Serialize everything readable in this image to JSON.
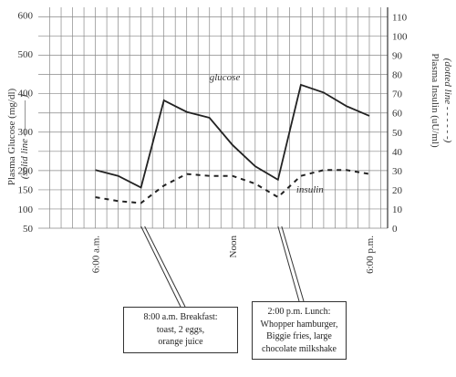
{
  "chart_data": {
    "type": "line",
    "title": "",
    "y_left_label": "Plasma Glucose (mg/dl)",
    "y_left_sublabel": "(solid line ———— )",
    "y_right_label": "Plasma Insulin (uU/ml)",
    "y_right_sublabel": "(dotted line - - - - - -)",
    "y_left_ticks": [
      600,
      500,
      400,
      300,
      200,
      150,
      100,
      50
    ],
    "y_left_tick_labels": [
      "600",
      "500",
      "400",
      "300",
      "200",
      "150",
      "100",
      "50"
    ],
    "y_right_ticks": [
      110,
      100,
      90,
      80,
      70,
      60,
      50,
      40,
      30,
      20,
      10,
      0
    ],
    "y_left_range": [
      50,
      620
    ],
    "y_right_range": [
      0,
      115
    ],
    "x_tick_labels": [
      "6:00 a.m.",
      "Noon",
      "6:00 p.m."
    ],
    "x_ticks_hours": [
      6,
      12,
      18
    ],
    "x_range_hours": [
      3.5,
      18.8
    ],
    "grid": true,
    "series": [
      {
        "name": "glucose",
        "style": "solid",
        "axis": "left",
        "x_hours": [
          6.0,
          7.0,
          8.0,
          9.0,
          9.5,
          10.0,
          11.0,
          12.0,
          13.0,
          14.0,
          15.0,
          16.0,
          17.0,
          18.0
        ],
        "y": [
          200,
          185,
          155,
          380,
          365,
          350,
          335,
          265,
          210,
          175,
          420,
          400,
          365,
          340
        ]
      },
      {
        "name": "insulin",
        "style": "dotted",
        "axis": "left",
        "x_hours": [
          6.0,
          7.0,
          8.0,
          9.0,
          10.0,
          11.0,
          12.0,
          13.0,
          14.0,
          15.0,
          16.0,
          17.0,
          18.0
        ],
        "y": [
          130,
          120,
          115,
          160,
          190,
          185,
          185,
          165,
          130,
          185,
          200,
          200,
          190
        ]
      }
    ],
    "annotations": [
      {
        "text": "glucose",
        "for": "glucose"
      },
      {
        "text": "insulin",
        "for": "insulin"
      }
    ],
    "callouts": [
      {
        "x_hours": 8,
        "lines": [
          "8:00 a.m. Breakfast:",
          "toast, 2 eggs,",
          "orange juice"
        ]
      },
      {
        "x_hours": 14,
        "lines": [
          "2:00 p.m. Lunch:",
          "Whopper hamburger,",
          "Biggie fries, large",
          "chocolate milkshake"
        ]
      }
    ],
    "colors": {
      "line": "#222222",
      "grid": "#888888"
    }
  }
}
